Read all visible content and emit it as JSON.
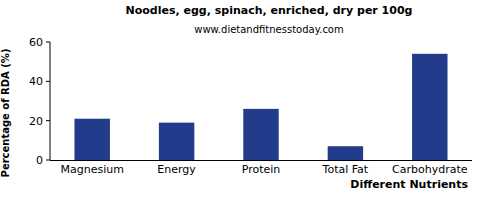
{
  "chart_data": {
    "type": "bar",
    "title": "Noodles, egg, spinach, enriched, dry per 100g",
    "subtitle": "www.dietandfitnesstoday.com",
    "x_label": "Different Nutrients",
    "y_label": "Percentage of RDA (%)",
    "categories": [
      "Magnesium",
      "Energy",
      "Protein",
      "Total Fat",
      "Carbohydrate"
    ],
    "values": [
      21,
      19,
      26,
      7,
      54
    ],
    "color": "#233b8b",
    "ylim": [
      0,
      60
    ],
    "yticks": [
      0,
      20,
      40,
      60
    ],
    "grid": false
  }
}
